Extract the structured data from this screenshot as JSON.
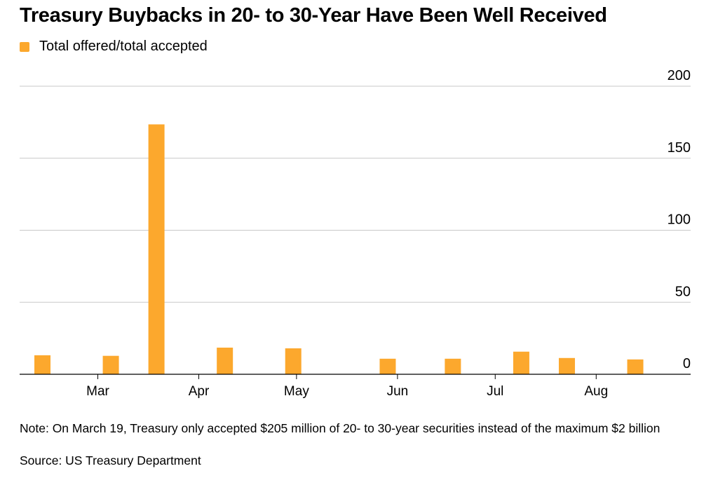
{
  "title": "Treasury Buybacks in 20- to 30-Year Have Been Well Received",
  "legend": {
    "label": "Total offered/total accepted",
    "color": "#fca82d"
  },
  "note": "Note: On March 19, Treasury only accepted $205 million of 20- to 30-year securities instead of the maximum $2 billion",
  "source": "Source: US Treasury Department",
  "chart_data": {
    "type": "bar",
    "x": [
      "2024-02-13",
      "2024-03-05",
      "2024-03-19",
      "2024-04-09",
      "2024-04-30",
      "2024-05-29",
      "2024-06-18",
      "2024-07-09",
      "2024-07-23",
      "2024-08-13"
    ],
    "values": [
      13.2,
      12.8,
      173.5,
      18.5,
      18.0,
      10.8,
      10.8,
      15.7,
      11.3,
      10.3
    ],
    "series_name": "Total offered/total accepted",
    "x_ticks": [
      {
        "date": "2024-03-01",
        "label": "Mar"
      },
      {
        "date": "2024-04-01",
        "label": "Apr"
      },
      {
        "date": "2024-05-01",
        "label": "May"
      },
      {
        "date": "2024-06-01",
        "label": "Jun"
      },
      {
        "date": "2024-07-01",
        "label": "Jul"
      },
      {
        "date": "2024-08-01",
        "label": "Aug"
      }
    ],
    "y_ticks": [
      0,
      50,
      100,
      150,
      200
    ],
    "ylim": [
      0,
      200
    ],
    "xlim": [
      "2024-02-06",
      "2024-08-30"
    ],
    "grid": true,
    "y_axis_side": "right",
    "legend_position": "top-left",
    "colors": {
      "bar": "#fca82d",
      "grid": "#c8c8c8",
      "axis": "#000000"
    }
  }
}
